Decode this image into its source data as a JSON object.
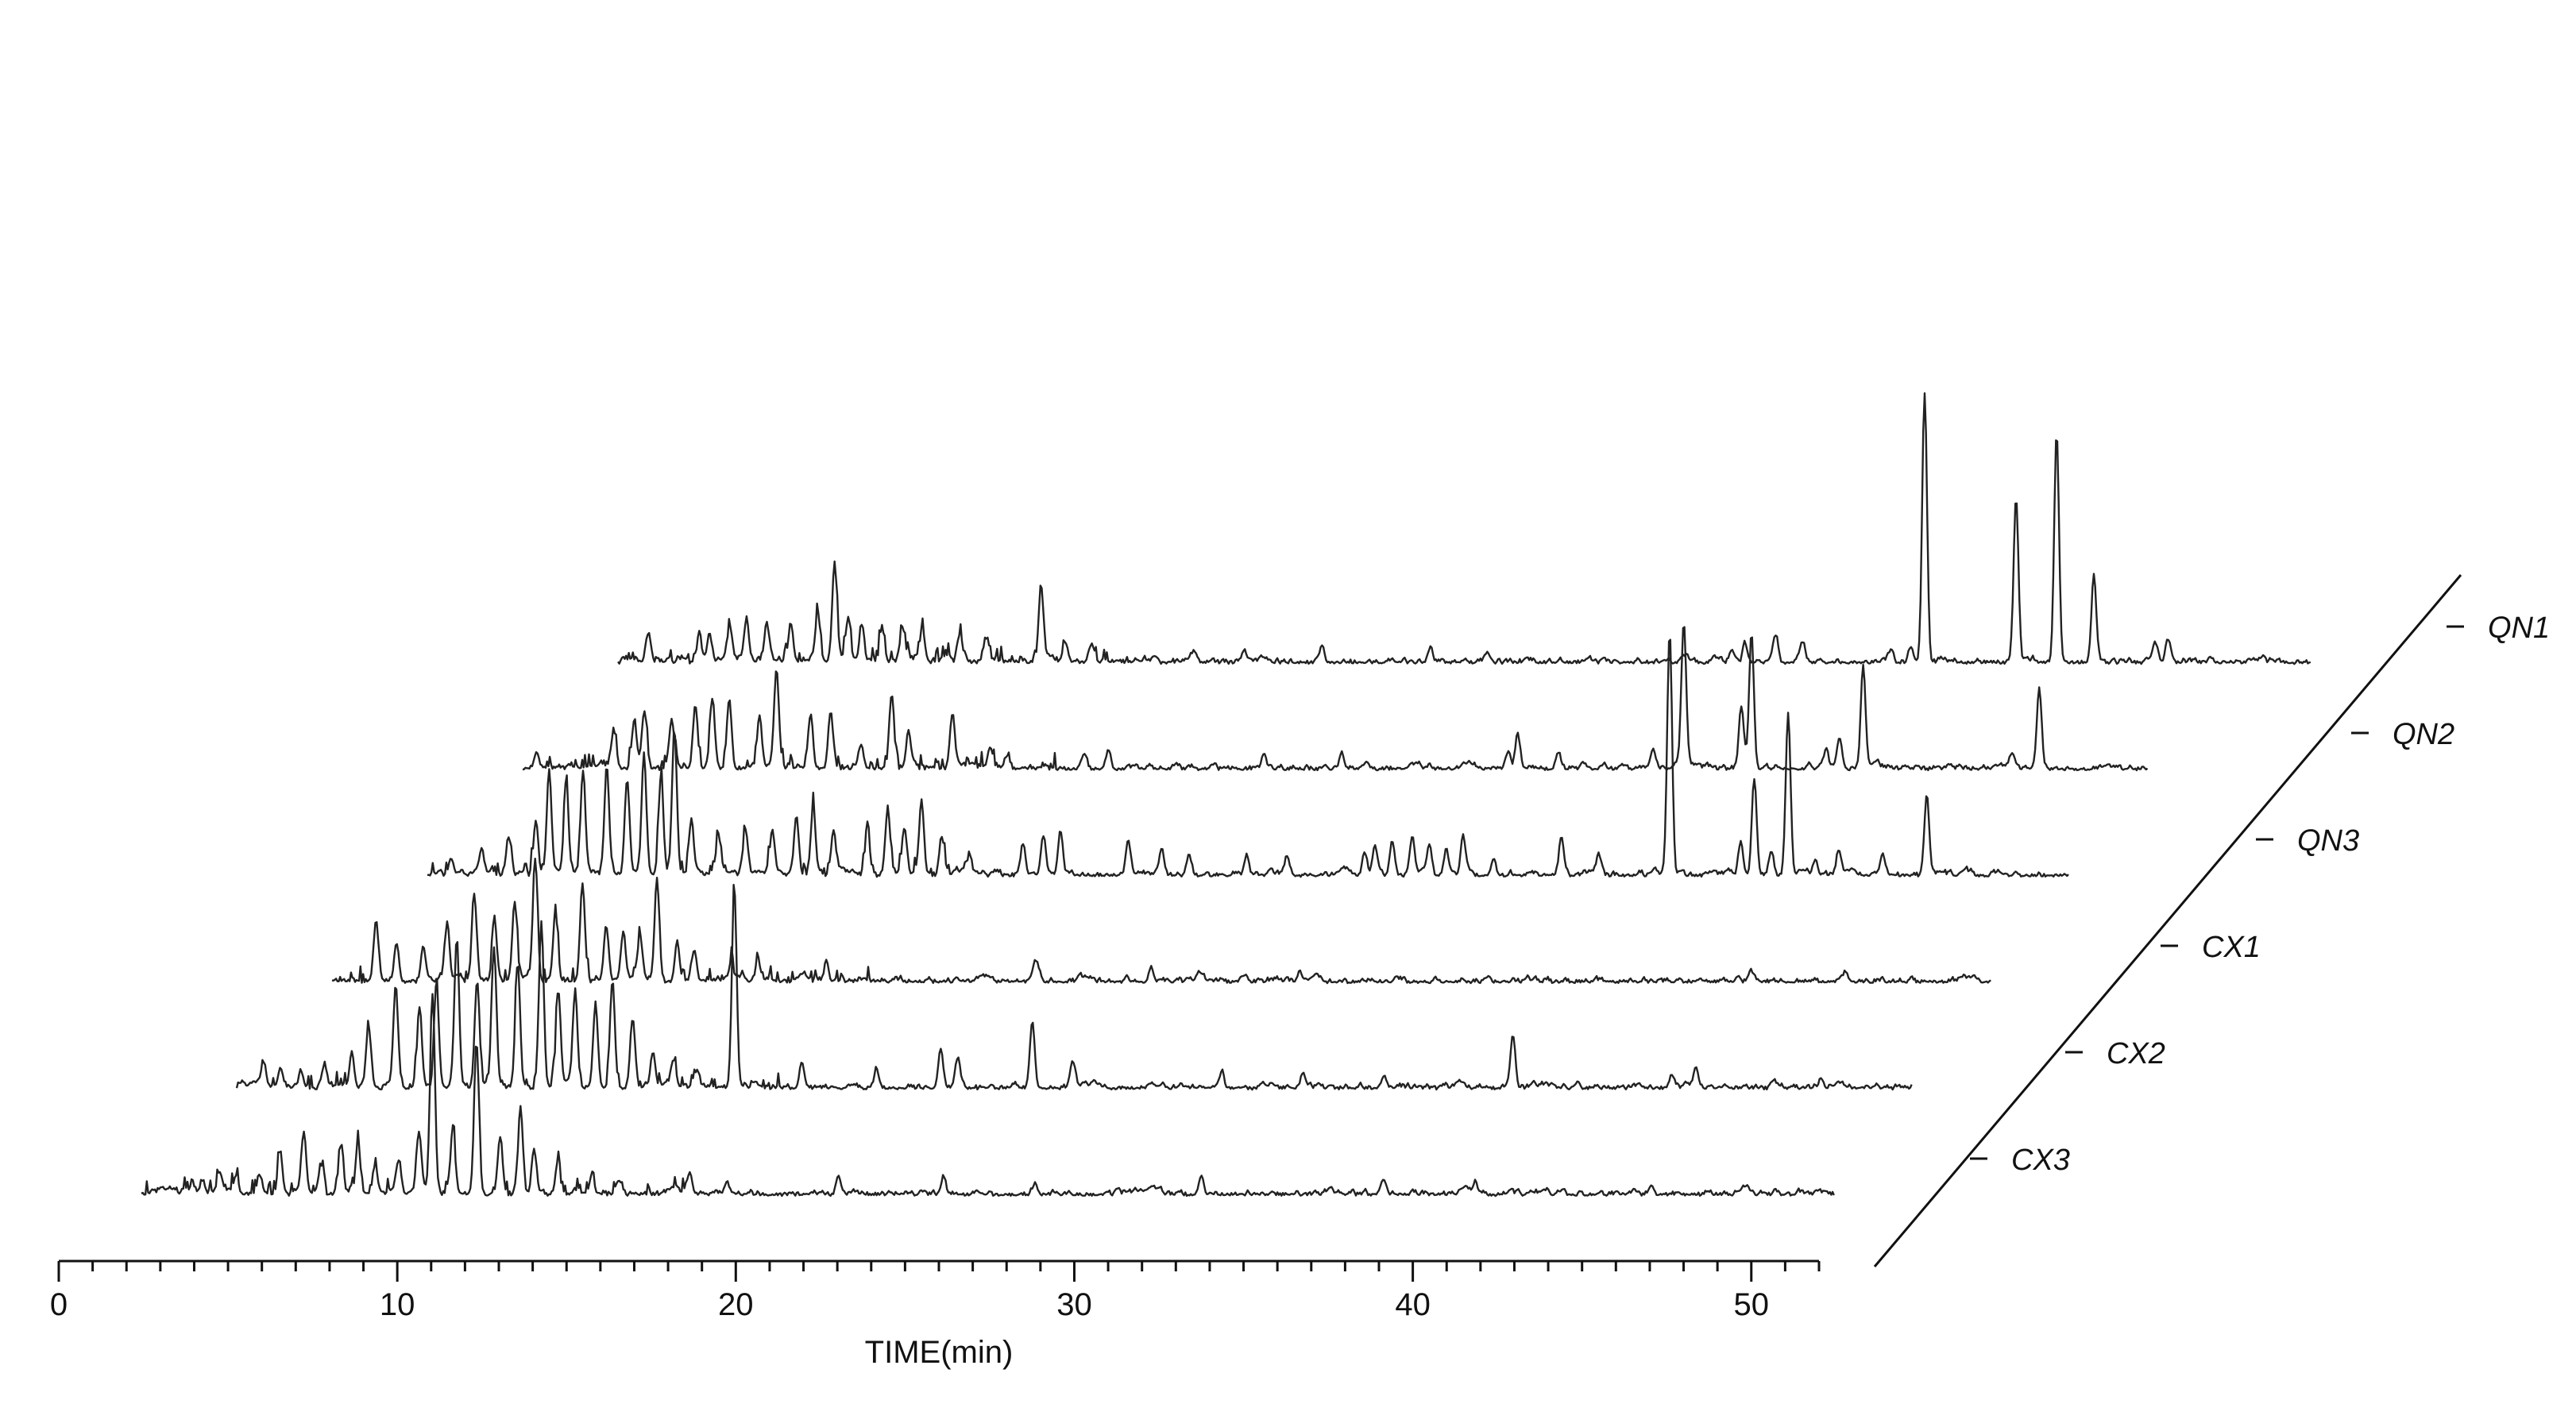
{
  "chart_data": {
    "type": "line",
    "title": "",
    "xlabel": "TIME(min)",
    "ylabel": "",
    "xlim": [
      0,
      52
    ],
    "x_ticks": [
      "0",
      "10",
      "20",
      "30",
      "40",
      "50"
    ],
    "x_tick_values": [
      0,
      10,
      20,
      30,
      40,
      50
    ],
    "z_axis_labels": [
      "QN1",
      "QN2",
      "QN3",
      "CX1",
      "CX2",
      "CX3"
    ],
    "grid": false,
    "series": [
      {
        "name": "CX3",
        "x_start": 0,
        "x_end": 50,
        "baseline": 0.03,
        "peaks": [
          [
            1.5,
            0.08
          ],
          [
            1.8,
            0.09
          ],
          [
            2.3,
            0.1
          ],
          [
            2.8,
            0.12
          ],
          [
            3.5,
            0.1
          ],
          [
            4.1,
            0.26
          ],
          [
            4.8,
            0.36
          ],
          [
            5.3,
            0.18
          ],
          [
            5.9,
            0.32
          ],
          [
            6.4,
            0.31
          ],
          [
            6.9,
            0.18
          ],
          [
            7.6,
            0.22
          ],
          [
            8.2,
            0.38
          ],
          [
            8.6,
            1.25
          ],
          [
            9.2,
            0.42
          ],
          [
            9.9,
            0.96
          ],
          [
            10.6,
            0.36
          ],
          [
            11.2,
            0.52
          ],
          [
            11.6,
            0.28
          ],
          [
            12.3,
            0.2
          ],
          [
            13.3,
            0.1
          ],
          [
            14.1,
            0.08
          ],
          [
            16.2,
            0.14
          ],
          [
            17.3,
            0.08
          ],
          [
            20.6,
            0.11
          ],
          [
            23.7,
            0.12
          ],
          [
            26.4,
            0.07
          ],
          [
            31.3,
            0.11
          ],
          [
            36.7,
            0.1
          ],
          [
            39.4,
            0.08
          ],
          [
            44.6,
            0.06
          ]
        ]
      },
      {
        "name": "CX2",
        "x_start": 0,
        "x_end": 49.5,
        "baseline": 0.03,
        "peaks": [
          [
            0.8,
            0.14
          ],
          [
            1.3,
            0.12
          ],
          [
            1.9,
            0.1
          ],
          [
            2.6,
            0.14
          ],
          [
            3.4,
            0.22
          ],
          [
            3.9,
            0.38
          ],
          [
            4.7,
            0.62
          ],
          [
            5.4,
            0.5
          ],
          [
            5.9,
            0.66
          ],
          [
            6.5,
            0.94
          ],
          [
            7.1,
            0.66
          ],
          [
            7.6,
            0.84
          ],
          [
            8.3,
            0.78
          ],
          [
            9.0,
            1.02
          ],
          [
            9.5,
            0.62
          ],
          [
            10.0,
            0.58
          ],
          [
            10.6,
            0.52
          ],
          [
            11.1,
            0.68
          ],
          [
            11.7,
            0.42
          ],
          [
            12.3,
            0.22
          ],
          [
            12.9,
            0.18
          ],
          [
            13.6,
            0.12
          ],
          [
            14.7,
            1.25
          ],
          [
            16.7,
            0.16
          ],
          [
            18.9,
            0.12
          ],
          [
            20.8,
            0.21
          ],
          [
            21.3,
            0.18
          ],
          [
            23.5,
            0.42
          ],
          [
            24.7,
            0.14
          ],
          [
            29.1,
            0.09
          ],
          [
            31.5,
            0.1
          ],
          [
            33.9,
            0.08
          ],
          [
            37.7,
            0.34
          ],
          [
            42.4,
            0.09
          ],
          [
            43.1,
            0.1
          ],
          [
            46.8,
            0.06
          ]
        ]
      },
      {
        "name": "CX1",
        "x_start": 0,
        "x_end": 49,
        "baseline": 0.03,
        "peaks": [
          [
            1.3,
            0.38
          ],
          [
            1.9,
            0.22
          ],
          [
            2.7,
            0.2
          ],
          [
            3.4,
            0.36
          ],
          [
            4.2,
            0.55
          ],
          [
            4.8,
            0.38
          ],
          [
            5.4,
            0.5
          ],
          [
            6.0,
            0.78
          ],
          [
            6.6,
            0.42
          ],
          [
            7.4,
            0.58
          ],
          [
            8.1,
            0.34
          ],
          [
            8.6,
            0.3
          ],
          [
            9.1,
            0.28
          ],
          [
            9.6,
            0.62
          ],
          [
            10.2,
            0.22
          ],
          [
            10.7,
            0.19
          ],
          [
            11.8,
            0.1
          ],
          [
            12.6,
            0.12
          ],
          [
            14.6,
            0.1
          ],
          [
            20.8,
            0.1
          ],
          [
            24.2,
            0.08
          ],
          [
            25.6,
            0.06
          ],
          [
            28.6,
            0.06
          ],
          [
            41.9,
            0.06
          ],
          [
            44.7,
            0.05
          ]
        ]
      },
      {
        "name": "QN3",
        "x_start": 0,
        "x_end": 48.5,
        "baseline": 0.03,
        "peaks": [
          [
            0.7,
            0.1
          ],
          [
            1.6,
            0.14
          ],
          [
            2.4,
            0.24
          ],
          [
            3.2,
            0.32
          ],
          [
            3.6,
            0.64
          ],
          [
            4.1,
            0.58
          ],
          [
            4.6,
            0.66
          ],
          [
            5.3,
            0.66
          ],
          [
            5.9,
            0.58
          ],
          [
            6.4,
            0.76
          ],
          [
            6.9,
            0.62
          ],
          [
            7.3,
            0.92
          ],
          [
            7.8,
            0.34
          ],
          [
            8.6,
            0.24
          ],
          [
            9.4,
            0.28
          ],
          [
            10.2,
            0.26
          ],
          [
            10.9,
            0.36
          ],
          [
            11.4,
            0.44
          ],
          [
            12.0,
            0.28
          ],
          [
            13.0,
            0.28
          ],
          [
            13.6,
            0.42
          ],
          [
            14.1,
            0.3
          ],
          [
            14.6,
            0.44
          ],
          [
            15.2,
            0.24
          ],
          [
            16.0,
            0.12
          ],
          [
            17.6,
            0.2
          ],
          [
            18.2,
            0.22
          ],
          [
            18.7,
            0.28
          ],
          [
            20.7,
            0.2
          ],
          [
            21.7,
            0.14
          ],
          [
            22.5,
            0.12
          ],
          [
            24.2,
            0.12
          ],
          [
            25.4,
            0.12
          ],
          [
            27.7,
            0.14
          ],
          [
            28.0,
            0.18
          ],
          [
            28.5,
            0.2
          ],
          [
            29.1,
            0.22
          ],
          [
            29.6,
            0.2
          ],
          [
            30.1,
            0.16
          ],
          [
            30.6,
            0.22
          ],
          [
            31.5,
            0.1
          ],
          [
            33.5,
            0.24
          ],
          [
            34.6,
            0.12
          ],
          [
            36.7,
            1.5
          ],
          [
            38.8,
            0.2
          ],
          [
            39.2,
            0.6
          ],
          [
            39.7,
            0.16
          ],
          [
            40.2,
            1.02
          ],
          [
            41.0,
            0.1
          ],
          [
            41.7,
            0.16
          ],
          [
            43.0,
            0.12
          ],
          [
            44.3,
            0.48
          ]
        ]
      },
      {
        "name": "QN2",
        "x_start": 0,
        "x_end": 48,
        "baseline": 0.03,
        "peaks": [
          [
            0.4,
            0.1
          ],
          [
            2.7,
            0.22
          ],
          [
            3.3,
            0.28
          ],
          [
            3.6,
            0.36
          ],
          [
            4.4,
            0.3
          ],
          [
            5.1,
            0.4
          ],
          [
            5.6,
            0.44
          ],
          [
            6.1,
            0.42
          ],
          [
            7.0,
            0.32
          ],
          [
            7.5,
            0.62
          ],
          [
            8.5,
            0.34
          ],
          [
            9.1,
            0.36
          ],
          [
            10.0,
            0.14
          ],
          [
            10.9,
            0.46
          ],
          [
            11.4,
            0.22
          ],
          [
            12.7,
            0.34
          ],
          [
            13.8,
            0.12
          ],
          [
            14.3,
            0.08
          ],
          [
            16.6,
            0.1
          ],
          [
            17.3,
            0.1
          ],
          [
            21.9,
            0.1
          ],
          [
            24.2,
            0.1
          ],
          [
            29.1,
            0.1
          ],
          [
            29.4,
            0.22
          ],
          [
            30.6,
            0.09
          ],
          [
            33.4,
            0.09
          ],
          [
            34.3,
            0.9
          ],
          [
            36.0,
            0.4
          ],
          [
            36.3,
            0.85
          ],
          [
            38.5,
            0.12
          ],
          [
            38.9,
            0.18
          ],
          [
            39.6,
            0.65
          ],
          [
            44.0,
            0.1
          ],
          [
            44.8,
            0.48
          ]
        ]
      },
      {
        "name": "QN1",
        "x_start": 0,
        "x_end": 50,
        "baseline": 0.03,
        "peaks": [
          [
            0.9,
            0.15
          ],
          [
            2.4,
            0.17
          ],
          [
            2.7,
            0.18
          ],
          [
            3.3,
            0.2
          ],
          [
            3.8,
            0.26
          ],
          [
            4.4,
            0.24
          ],
          [
            5.1,
            0.24
          ],
          [
            5.9,
            0.28
          ],
          [
            6.4,
            0.62
          ],
          [
            6.8,
            0.28
          ],
          [
            7.2,
            0.24
          ],
          [
            7.8,
            0.22
          ],
          [
            8.4,
            0.2
          ],
          [
            9.0,
            0.18
          ],
          [
            10.1,
            0.18
          ],
          [
            10.9,
            0.14
          ],
          [
            12.5,
            0.45
          ],
          [
            13.2,
            0.1
          ],
          [
            14.0,
            0.12
          ],
          [
            17.0,
            0.06
          ],
          [
            18.5,
            0.08
          ],
          [
            20.8,
            0.08
          ],
          [
            24.0,
            0.07
          ],
          [
            25.7,
            0.06
          ],
          [
            32.9,
            0.08
          ],
          [
            33.3,
            0.12
          ],
          [
            34.2,
            0.14
          ],
          [
            35.0,
            0.1
          ],
          [
            37.6,
            0.08
          ],
          [
            38.2,
            0.1
          ],
          [
            38.6,
            1.7
          ],
          [
            41.3,
            1.05
          ],
          [
            42.5,
            1.45
          ],
          [
            43.6,
            0.55
          ],
          [
            45.4,
            0.1
          ],
          [
            45.8,
            0.15
          ]
        ]
      }
    ]
  }
}
